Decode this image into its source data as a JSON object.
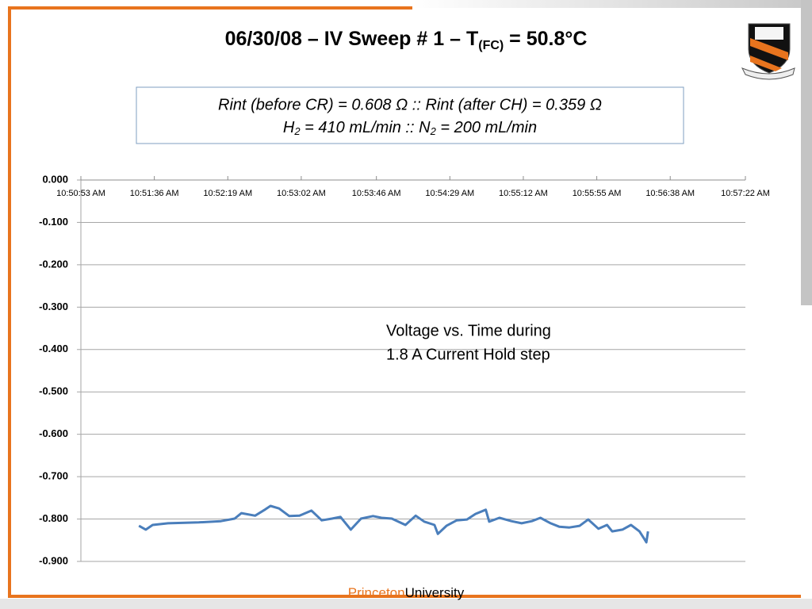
{
  "slide": {
    "title": "06/30/08 – IV Sweep # 1 – T",
    "title_subscript": "(FC)",
    "title_end": " = 50.8°C",
    "info_box": {
      "line1": "Rint (before CR) = 0.608 Ω :: Rint (after CH) = 0.359 Ω",
      "line2": [
        "H",
        "2",
        " = 410 mL/min :: N",
        "2",
        " = 200 mL/min"
      ]
    },
    "footer": [
      "Princeton",
      "University"
    ]
  },
  "chart_data": {
    "type": "line",
    "annotation": [
      "Voltage vs. Time during",
      "1.8 A Current Hold step"
    ],
    "x": [
      "10:51:27 AM",
      "10:51:31 AM",
      "10:51:35 AM",
      "10:51:44 AM",
      "10:52:02 AM",
      "10:52:15 AM",
      "10:52:23 AM",
      "10:52:27 AM",
      "10:52:35 AM",
      "10:52:41 AM",
      "10:52:44 AM",
      "10:52:49 AM",
      "10:52:55 AM",
      "10:53:01 AM",
      "10:53:08 AM",
      "10:53:14 AM",
      "10:53:20 AM",
      "10:53:25 AM",
      "10:53:31 AM",
      "10:53:37 AM",
      "10:53:44 AM",
      "10:53:49 AM",
      "10:53:55 AM",
      "10:54:03 AM",
      "10:54:09 AM",
      "10:54:14 AM",
      "10:54:20 AM",
      "10:54:22 AM",
      "10:54:27 AM",
      "10:54:33 AM",
      "10:54:39 AM",
      "10:54:44 AM",
      "10:54:50 AM",
      "10:54:52 AM",
      "10:54:58 AM",
      "10:55:05 AM",
      "10:55:11 AM",
      "10:55:17 AM",
      "10:55:22 AM",
      "10:55:28 AM",
      "10:55:33 AM",
      "10:55:39 AM",
      "10:55:45 AM",
      "10:55:50 AM",
      "10:55:56 AM",
      "10:56:01 AM",
      "10:56:04 AM",
      "10:56:10 AM",
      "10:56:15 AM",
      "10:56:20 AM",
      "10:56:23 AM",
      "10:56:24 AM",
      "10:56:25 AM"
    ],
    "series": [
      {
        "color": "#4a7ebb",
        "values": [
          -0.816,
          -0.825,
          -0.814,
          -0.81,
          -0.808,
          -0.805,
          -0.799,
          -0.786,
          -0.792,
          -0.777,
          -0.769,
          -0.775,
          -0.793,
          -0.792,
          -0.78,
          -0.803,
          -0.799,
          -0.795,
          -0.825,
          -0.799,
          -0.793,
          -0.797,
          -0.799,
          -0.814,
          -0.792,
          -0.806,
          -0.814,
          -0.835,
          -0.816,
          -0.803,
          -0.801,
          -0.788,
          -0.778,
          -0.806,
          -0.797,
          -0.805,
          -0.81,
          -0.805,
          -0.797,
          -0.81,
          -0.818,
          -0.82,
          -0.816,
          -0.801,
          -0.823,
          -0.814,
          -0.829,
          -0.825,
          -0.814,
          -0.829,
          -0.848,
          -0.855,
          -0.829
        ]
      }
    ],
    "xlim": [
      "10:50:53 AM",
      "10:57:22 AM"
    ],
    "xticks": [
      "10:50:53 AM",
      "10:51:36 AM",
      "10:52:19 AM",
      "10:53:02 AM",
      "10:53:46 AM",
      "10:54:29 AM",
      "10:55:12 AM",
      "10:55:55 AM",
      "10:56:38 AM",
      "10:57:22 AM"
    ],
    "ylim": [
      -0.9,
      0
    ],
    "yticks": [
      {
        "value": 0,
        "label": "0.000"
      },
      {
        "value": -0.1,
        "label": "-0.100"
      },
      {
        "value": -0.2,
        "label": "-0.200"
      },
      {
        "value": -0.3,
        "label": "-0.300"
      },
      {
        "value": -0.4,
        "label": "-0.400"
      },
      {
        "value": -0.5,
        "label": "-0.500"
      },
      {
        "value": -0.6,
        "label": "-0.600"
      },
      {
        "value": -0.7,
        "label": "-0.700"
      },
      {
        "value": -0.8,
        "label": "-0.800"
      },
      {
        "value": -0.9,
        "label": "-0.900"
      }
    ],
    "grid": true
  }
}
